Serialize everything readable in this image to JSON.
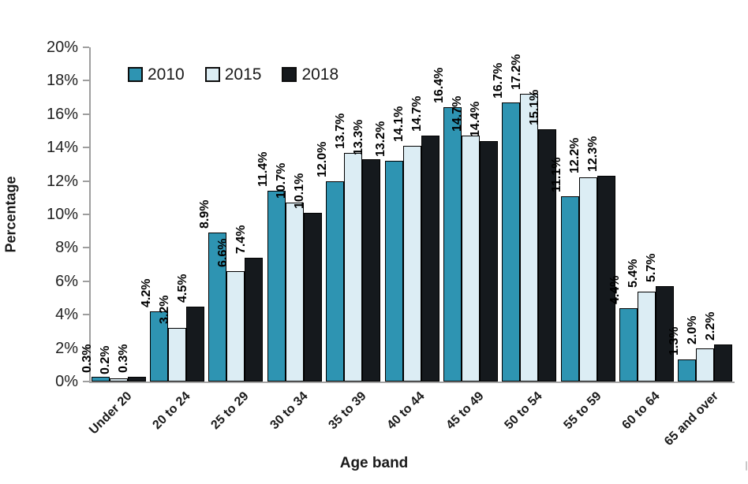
{
  "chart_data": {
    "type": "bar",
    "title": "",
    "xlabel": "Age band",
    "ylabel": "Percentage",
    "categories": [
      "Under 20",
      "20 to 24",
      "25 to 29",
      "30 to 34",
      "35 to 39",
      "40 to 44",
      "45 to 49",
      "50 to 54",
      "55 to 59",
      "60 to 64",
      "65 and over"
    ],
    "series": [
      {
        "name": "2010",
        "color": "#2E94B2",
        "values": [
          0.3,
          4.2,
          8.9,
          11.4,
          12.0,
          13.2,
          16.4,
          16.7,
          11.1,
          4.4,
          1.3
        ],
        "labels": [
          "0.3%",
          "4.2%",
          "8.9%",
          "11.4%",
          "12.0%",
          "13.2%",
          "16.4%",
          "16.7%",
          "11.1%",
          "4.4%",
          "1.3%"
        ]
      },
      {
        "name": "2015",
        "color": "#DCEDF4",
        "values": [
          0.2,
          3.2,
          6.6,
          10.7,
          13.7,
          14.1,
          14.7,
          17.2,
          12.2,
          5.4,
          2.0
        ],
        "labels": [
          "0.2%",
          "3.2%",
          "6.6%",
          "10.7%",
          "13.7%",
          "14.1%",
          "14.7%",
          "17.2%",
          "12.2%",
          "5.4%",
          "2.0%"
        ]
      },
      {
        "name": "2018",
        "color": "#15191D",
        "values": [
          0.3,
          4.5,
          7.4,
          10.1,
          13.3,
          14.7,
          14.4,
          15.1,
          12.3,
          5.7,
          2.2
        ],
        "labels": [
          "0.3%",
          "4.5%",
          "7.4%",
          "10.1%",
          "13.3%",
          "14.7%",
          "14.4%",
          "15.1%",
          "12.3%",
          "5.7%",
          "2.2%"
        ]
      }
    ],
    "y_ticks": [
      "0%",
      "2%",
      "4%",
      "6%",
      "8%",
      "10%",
      "12%",
      "14%",
      "16%",
      "18%",
      "20%"
    ],
    "ylim": [
      0,
      20
    ],
    "y_tick_step": 2,
    "grid": false,
    "legend_position": "top-left-inside",
    "bar_border_color": "#000000",
    "axis_color": "#A6A6A6"
  }
}
